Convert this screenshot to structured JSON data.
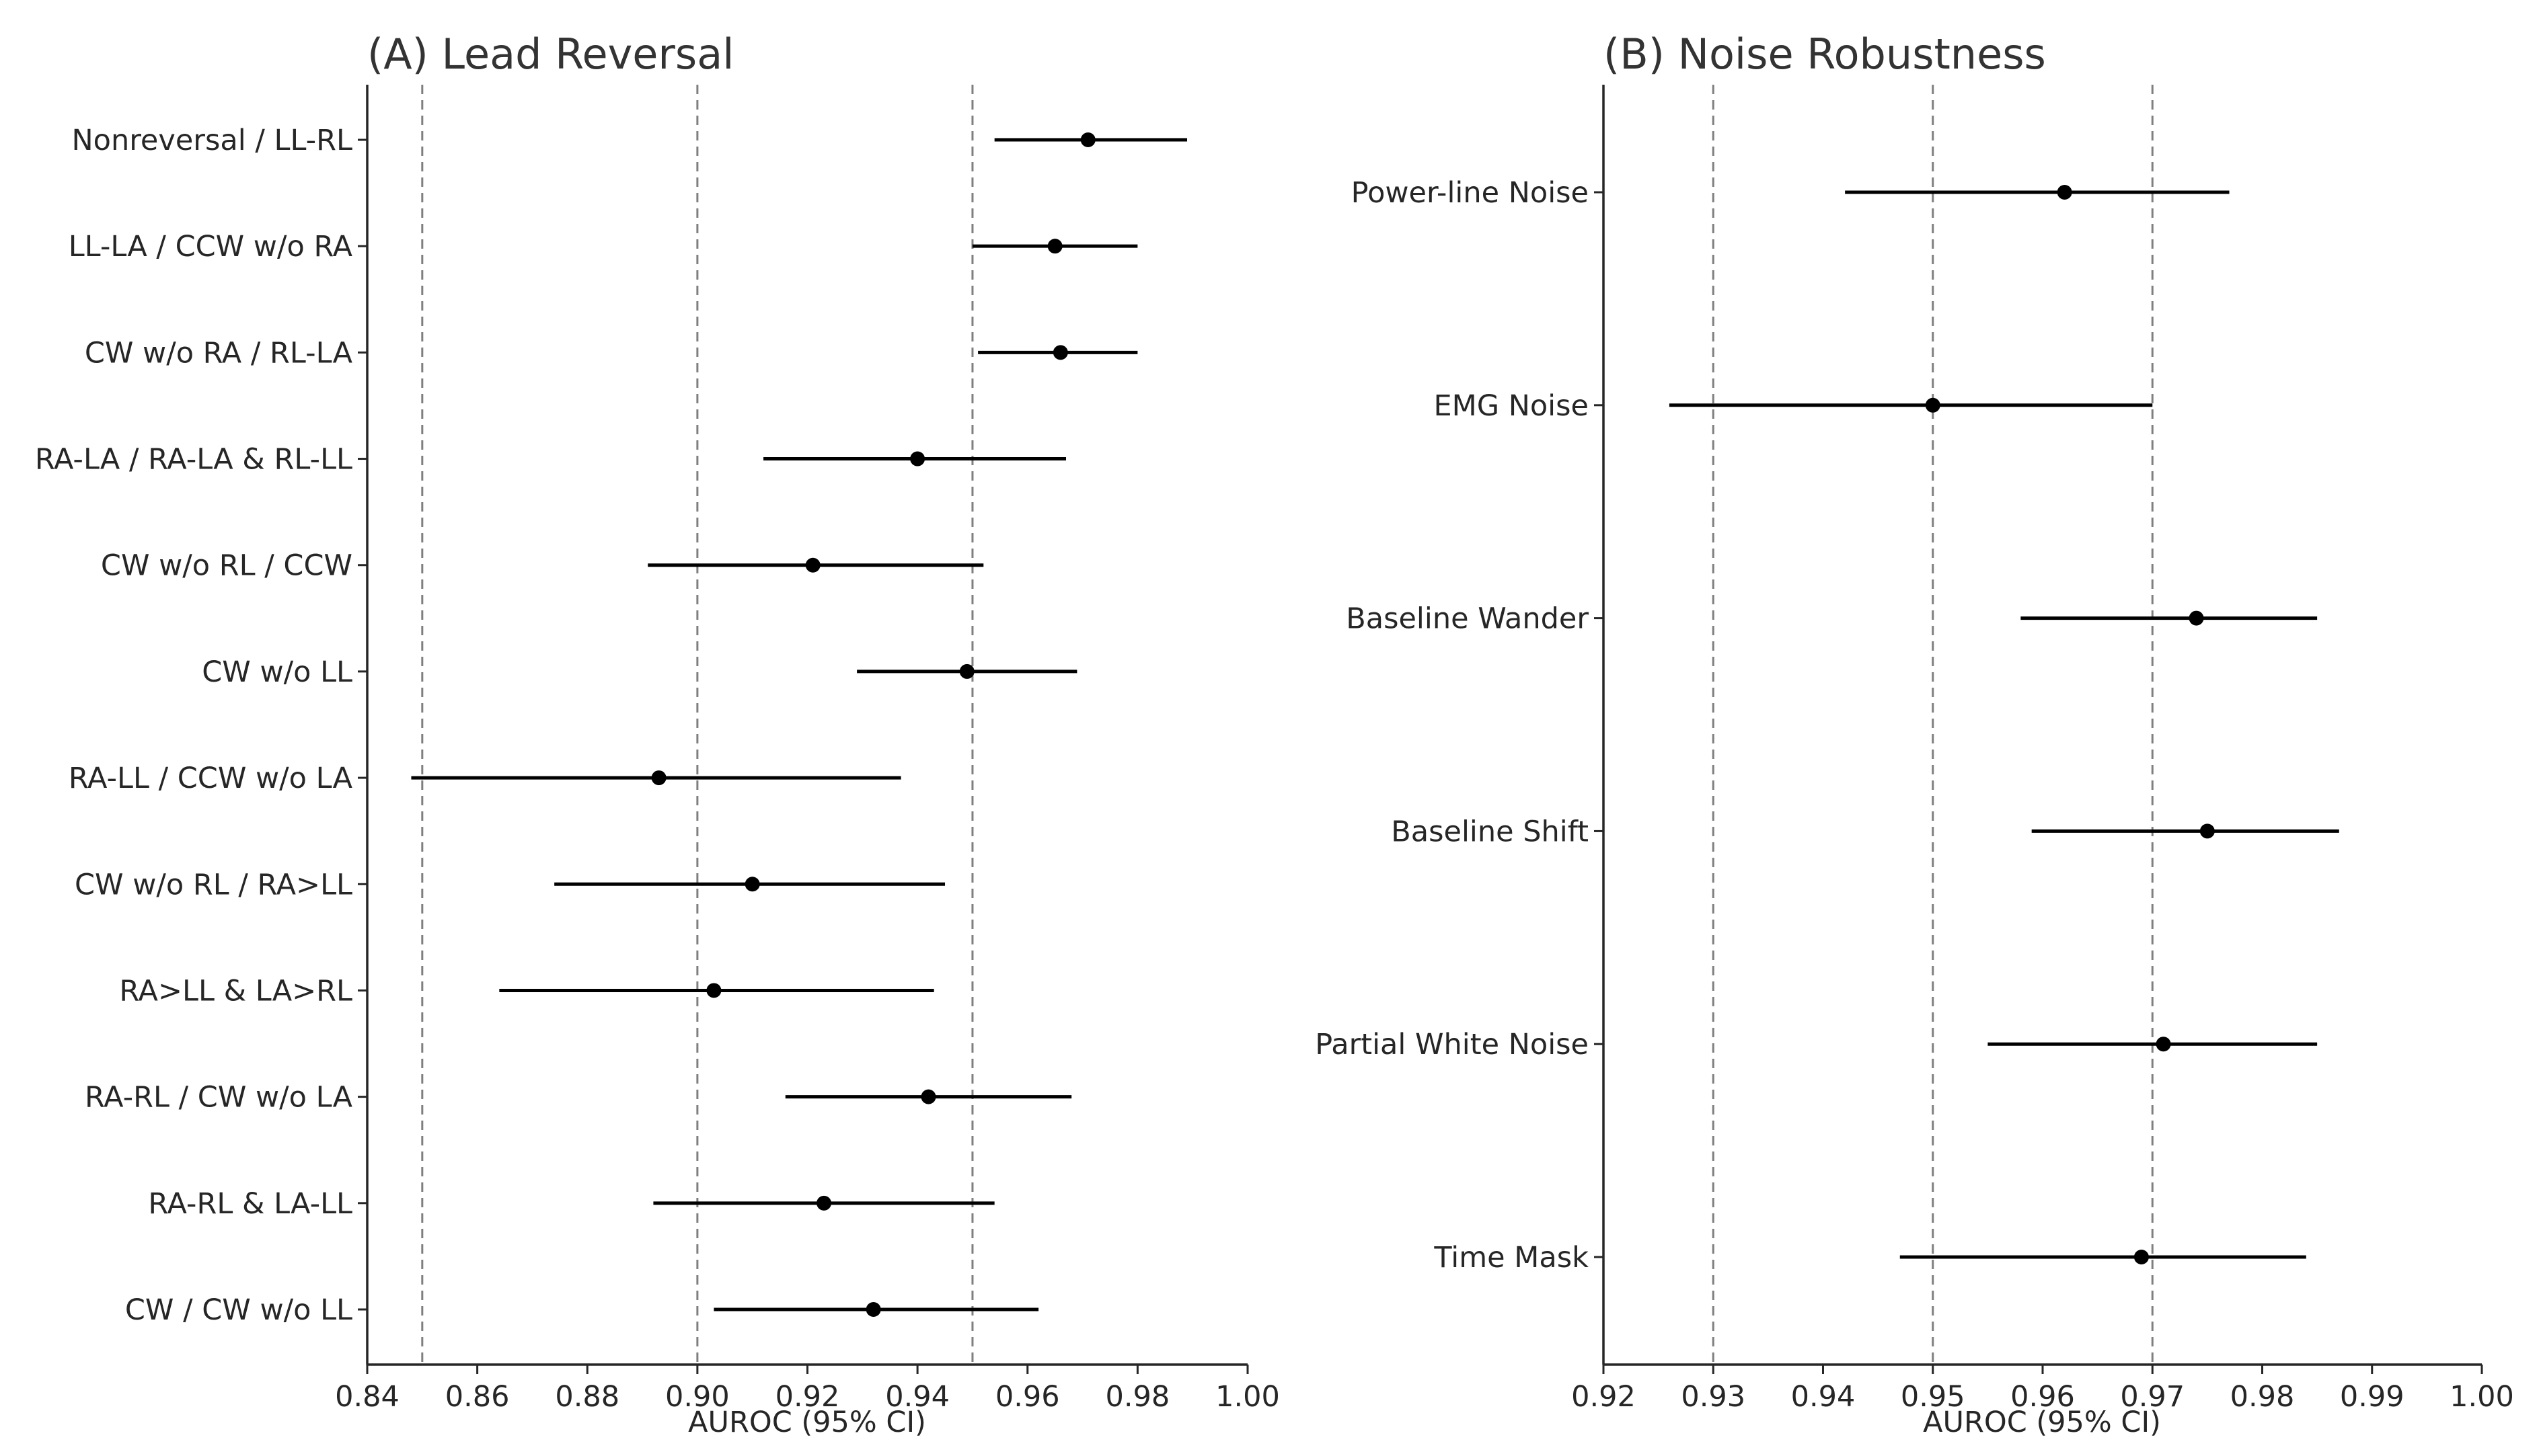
{
  "chart_data": [
    {
      "type": "forest",
      "title": "(A) Lead Reversal",
      "xlabel": "AUROC (95% CI)",
      "xlim": [
        0.84,
        1.0
      ],
      "xticks": [
        0.84,
        0.86,
        0.88,
        0.9,
        0.92,
        0.94,
        0.96,
        0.98,
        1.0
      ],
      "xtick_labels": [
        "0.84",
        "0.86",
        "0.88",
        "0.90",
        "0.92",
        "0.94",
        "0.96",
        "0.98",
        "1.00"
      ],
      "reference_lines": [
        0.85,
        0.9,
        0.95
      ],
      "grid": false,
      "categories": [
        "Nonreversal / LL-RL",
        "LL-LA / CCW w/o RA",
        "CW w/o RA / RL-LA",
        "RA-LA / RA-LA & RL-LL",
        "CW w/o RL / CCW",
        "CW w/o LL",
        "RA-LL / CCW w/o LA",
        "CW w/o RL / RA>LL",
        "RA>LL & LA>RL",
        "RA-RL / CW w/o LA",
        "RA-RL & LA-LL",
        "CW / CW w/o LL"
      ],
      "values": [
        0.971,
        0.965,
        0.966,
        0.94,
        0.921,
        0.949,
        0.893,
        0.91,
        0.903,
        0.942,
        0.923,
        0.932
      ],
      "ci_lower": [
        0.954,
        0.95,
        0.951,
        0.912,
        0.891,
        0.929,
        0.848,
        0.874,
        0.864,
        0.916,
        0.892,
        0.903
      ],
      "ci_upper": [
        0.989,
        0.98,
        0.98,
        0.967,
        0.952,
        0.969,
        0.937,
        0.945,
        0.943,
        0.968,
        0.954,
        0.962
      ]
    },
    {
      "type": "forest",
      "title": "(B) Noise Robustness",
      "xlabel": "AUROC (95% CI)",
      "xlim": [
        0.92,
        1.0
      ],
      "xticks": [
        0.92,
        0.93,
        0.94,
        0.95,
        0.96,
        0.97,
        0.98,
        0.99,
        1.0
      ],
      "xtick_labels": [
        "0.92",
        "0.93",
        "0.94",
        "0.95",
        "0.96",
        "0.97",
        "0.98",
        "0.99",
        "1.00"
      ],
      "reference_lines": [
        0.93,
        0.95,
        0.97
      ],
      "grid": false,
      "categories": [
        "Power-line Noise",
        "EMG Noise",
        "Baseline Wander",
        "Baseline Shift",
        "Partial White Noise",
        "Time Mask"
      ],
      "values": [
        0.962,
        0.95,
        0.974,
        0.975,
        0.971,
        0.969
      ],
      "ci_lower": [
        0.942,
        0.926,
        0.958,
        0.959,
        0.955,
        0.947
      ],
      "ci_upper": [
        0.977,
        0.97,
        0.985,
        0.987,
        0.985,
        0.984
      ]
    }
  ]
}
